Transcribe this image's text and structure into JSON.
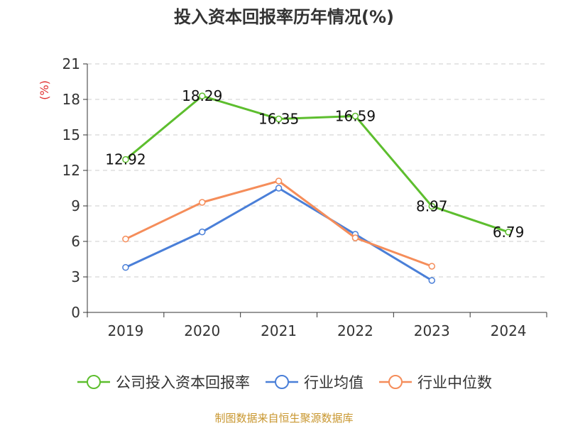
{
  "chart_data": {
    "type": "line",
    "title": "投入资本回报率历年情况(%)",
    "ylabel": "(%)",
    "xlabel": "",
    "categories": [
      "2019",
      "2020",
      "2021",
      "2022",
      "2023",
      "2024"
    ],
    "ylim": [
      0,
      21
    ],
    "yticks": [
      0,
      3,
      6,
      9,
      12,
      15,
      18,
      21
    ],
    "grid": true,
    "legend_position": "bottom",
    "series": [
      {
        "name": "公司投入资本回报率",
        "color": "#5dbe2e",
        "values": [
          12.92,
          18.29,
          16.35,
          16.59,
          8.97,
          6.79
        ],
        "labels": [
          "12.92",
          "18.29",
          "16.35",
          "16.59",
          "8.97",
          "6.79"
        ]
      },
      {
        "name": "行业均值",
        "color": "#4a7fd8",
        "values": [
          3.8,
          6.8,
          10.5,
          6.6,
          2.7,
          null
        ]
      },
      {
        "name": "行业中位数",
        "color": "#f58d5a",
        "values": [
          6.2,
          9.3,
          11.1,
          6.3,
          3.9,
          null
        ]
      }
    ]
  },
  "source": "制图数据来自恒生聚源数据库"
}
